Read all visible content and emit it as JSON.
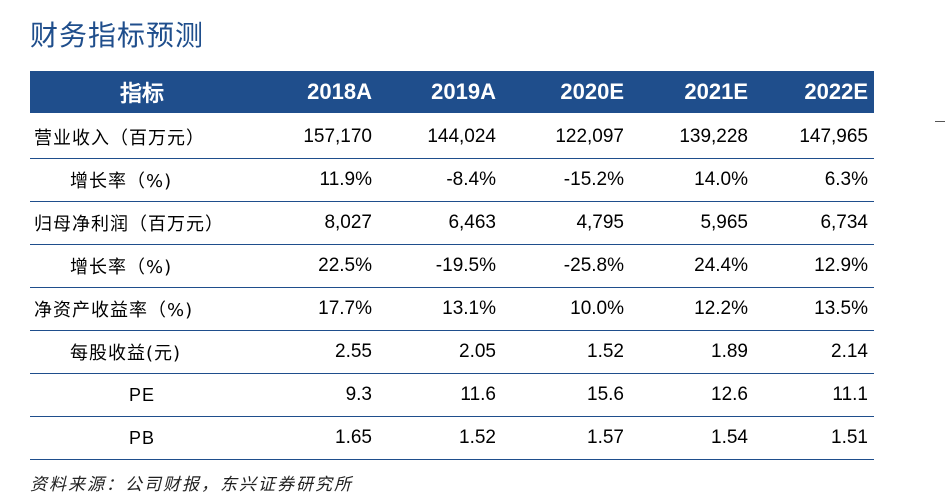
{
  "title": "财务指标预测",
  "table": {
    "headers": [
      "指标",
      "2018A",
      "2019A",
      "2020E",
      "2021E",
      "2022E"
    ],
    "rows": [
      {
        "label": "营业收入（百万元）",
        "values": [
          "157,170",
          "144,024",
          "122,097",
          "139,228",
          "147,965"
        ]
      },
      {
        "label": "增长率（%)",
        "values": [
          "11.9%",
          "-8.4%",
          "-15.2%",
          "14.0%",
          "6.3%"
        ]
      },
      {
        "label": "归母净利润（百万元）",
        "values": [
          "8,027",
          "6,463",
          "4,795",
          "5,965",
          "6,734"
        ]
      },
      {
        "label": "增长率（%)",
        "values": [
          "22.5%",
          "-19.5%",
          "-25.8%",
          "24.4%",
          "12.9%"
        ]
      },
      {
        "label": "净资产收益率（%)",
        "values": [
          "17.7%",
          "13.1%",
          "10.0%",
          "12.2%",
          "13.5%"
        ]
      },
      {
        "label": "每股收益(元)",
        "values": [
          "2.55",
          "2.05",
          "1.52",
          "1.89",
          "2.14"
        ]
      },
      {
        "label": "PE",
        "values": [
          "9.3",
          "11.6",
          "15.6",
          "12.6",
          "11.1"
        ]
      },
      {
        "label": "PB",
        "values": [
          "1.65",
          "1.52",
          "1.57",
          "1.54",
          "1.51"
        ]
      }
    ]
  },
  "source": "资料来源：公司财报，东兴证券研究所",
  "colors": {
    "header_bg": "#1f4e8c",
    "title": "#1f4e8c",
    "rule": "#1f4e8c"
  }
}
